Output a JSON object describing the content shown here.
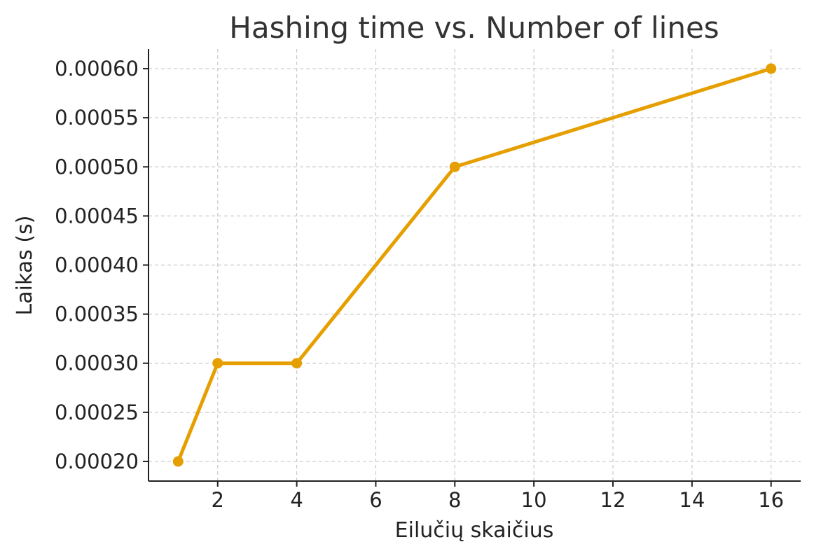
{
  "chart_data": {
    "type": "line",
    "title": "Hashing time vs. Number of lines",
    "xlabel": "Eilučių skaičius",
    "ylabel": "Laikas (s)",
    "x": [
      1,
      2,
      4,
      8,
      16
    ],
    "series": [
      {
        "values": [
          0.0002,
          0.0003,
          0.0003,
          0.0005,
          0.0006
        ],
        "color": "#E69F00"
      }
    ],
    "xlim": [
      0.25,
      16.75
    ],
    "ylim": [
      0.00018,
      0.00062
    ],
    "xticks": [
      2,
      4,
      6,
      8,
      10,
      12,
      14,
      16
    ],
    "xtick_labels": [
      "2",
      "4",
      "6",
      "8",
      "10",
      "12",
      "14",
      "16"
    ],
    "yticks": [
      0.0002,
      0.00025,
      0.0003,
      0.00035,
      0.0004,
      0.00045,
      0.0005,
      0.00055,
      0.0006
    ],
    "ytick_labels": [
      "0.00020",
      "0.00025",
      "0.00030",
      "0.00035",
      "0.00040",
      "0.00045",
      "0.00050",
      "0.00055",
      "0.00060"
    ],
    "grid": true,
    "markers": true
  }
}
